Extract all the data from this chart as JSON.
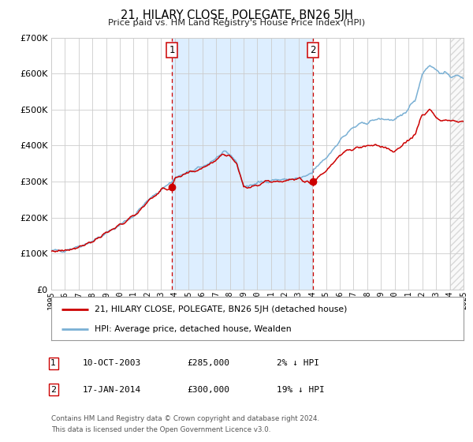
{
  "title": "21, HILARY CLOSE, POLEGATE, BN26 5JH",
  "subtitle": "Price paid vs. HM Land Registry's House Price Index (HPI)",
  "ylim": [
    0,
    700000
  ],
  "yticks": [
    0,
    100000,
    200000,
    300000,
    400000,
    500000,
    600000,
    700000
  ],
  "ytick_labels": [
    "£0",
    "£100K",
    "£200K",
    "£300K",
    "£400K",
    "£500K",
    "£600K",
    "£700K"
  ],
  "xmin_year": 1995,
  "xmax_year": 2025,
  "xticks": [
    1995,
    1996,
    1997,
    1998,
    1999,
    2000,
    2001,
    2002,
    2003,
    2004,
    2005,
    2006,
    2007,
    2008,
    2009,
    2010,
    2011,
    2012,
    2013,
    2014,
    2015,
    2016,
    2017,
    2018,
    2019,
    2020,
    2021,
    2022,
    2023,
    2024,
    2025
  ],
  "sale1_year": 2003.78,
  "sale1_price": 285000,
  "sale2_year": 2014.04,
  "sale2_price": 300000,
  "shade_start": 2003.78,
  "shade_end": 2014.04,
  "hatch_start": 2024.0,
  "red_line_color": "#cc0000",
  "blue_line_color": "#7ab0d4",
  "shade_color": "#ddeeff",
  "hatch_color": "#cccccc",
  "grid_color": "#cccccc",
  "background_color": "#ffffff",
  "sale_marker_color": "#cc0000",
  "legend_label_red": "21, HILARY CLOSE, POLEGATE, BN26 5JH (detached house)",
  "legend_label_blue": "HPI: Average price, detached house, Wealden",
  "table_row1": [
    "1",
    "10-OCT-2003",
    "£285,000",
    "2% ↓ HPI"
  ],
  "table_row2": [
    "2",
    "17-JAN-2014",
    "£300,000",
    "19% ↓ HPI"
  ],
  "footer1": "Contains HM Land Registry data © Crown copyright and database right 2024.",
  "footer2": "This data is licensed under the Open Government Licence v3.0."
}
